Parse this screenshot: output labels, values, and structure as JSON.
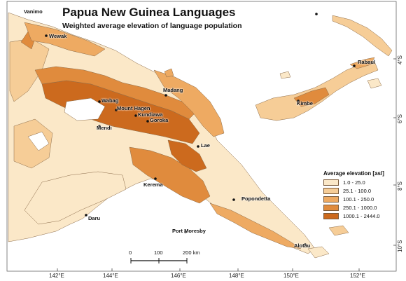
{
  "title": "Papua New Guinea Languages",
  "subtitle": "Weighted average elevation of language population",
  "legend": {
    "title": "Average elevation [asl]",
    "classes": [
      {
        "label": "1.0 - 25.0",
        "color": "#fbe8c8"
      },
      {
        "label": "25.1 - 100.0",
        "color": "#f6cd97"
      },
      {
        "label": "100.1 - 250.0",
        "color": "#eeaa62"
      },
      {
        "label": "250.1 - 1000.0",
        "color": "#e08b3d"
      },
      {
        "label": "1000.1 - 2444.0",
        "color": "#cc6a1e"
      }
    ]
  },
  "places": [
    {
      "name": "Vanimo"
    },
    {
      "name": "Wewak"
    },
    {
      "name": "Rabaul"
    },
    {
      "name": "Madang"
    },
    {
      "name": "Wabag"
    },
    {
      "name": "Mount Hagen"
    },
    {
      "name": "Kundiawa"
    },
    {
      "name": "Goroka"
    },
    {
      "name": "Mendi"
    },
    {
      "name": "Kimbe"
    },
    {
      "name": "Lae"
    },
    {
      "name": "Kerema"
    },
    {
      "name": "Popondetta"
    },
    {
      "name": "Daru"
    },
    {
      "name": "Port Moresby"
    },
    {
      "name": "Alotau"
    }
  ],
  "longitude_labels": [
    "142°E",
    "144°E",
    "146°E",
    "148°E",
    "150°E",
    "152°E"
  ],
  "latitude_labels": [
    "4°S",
    "6°S",
    "8°S",
    "10°S"
  ],
  "scale_bar": {
    "labels": [
      "0",
      "100",
      "200 km"
    ]
  }
}
